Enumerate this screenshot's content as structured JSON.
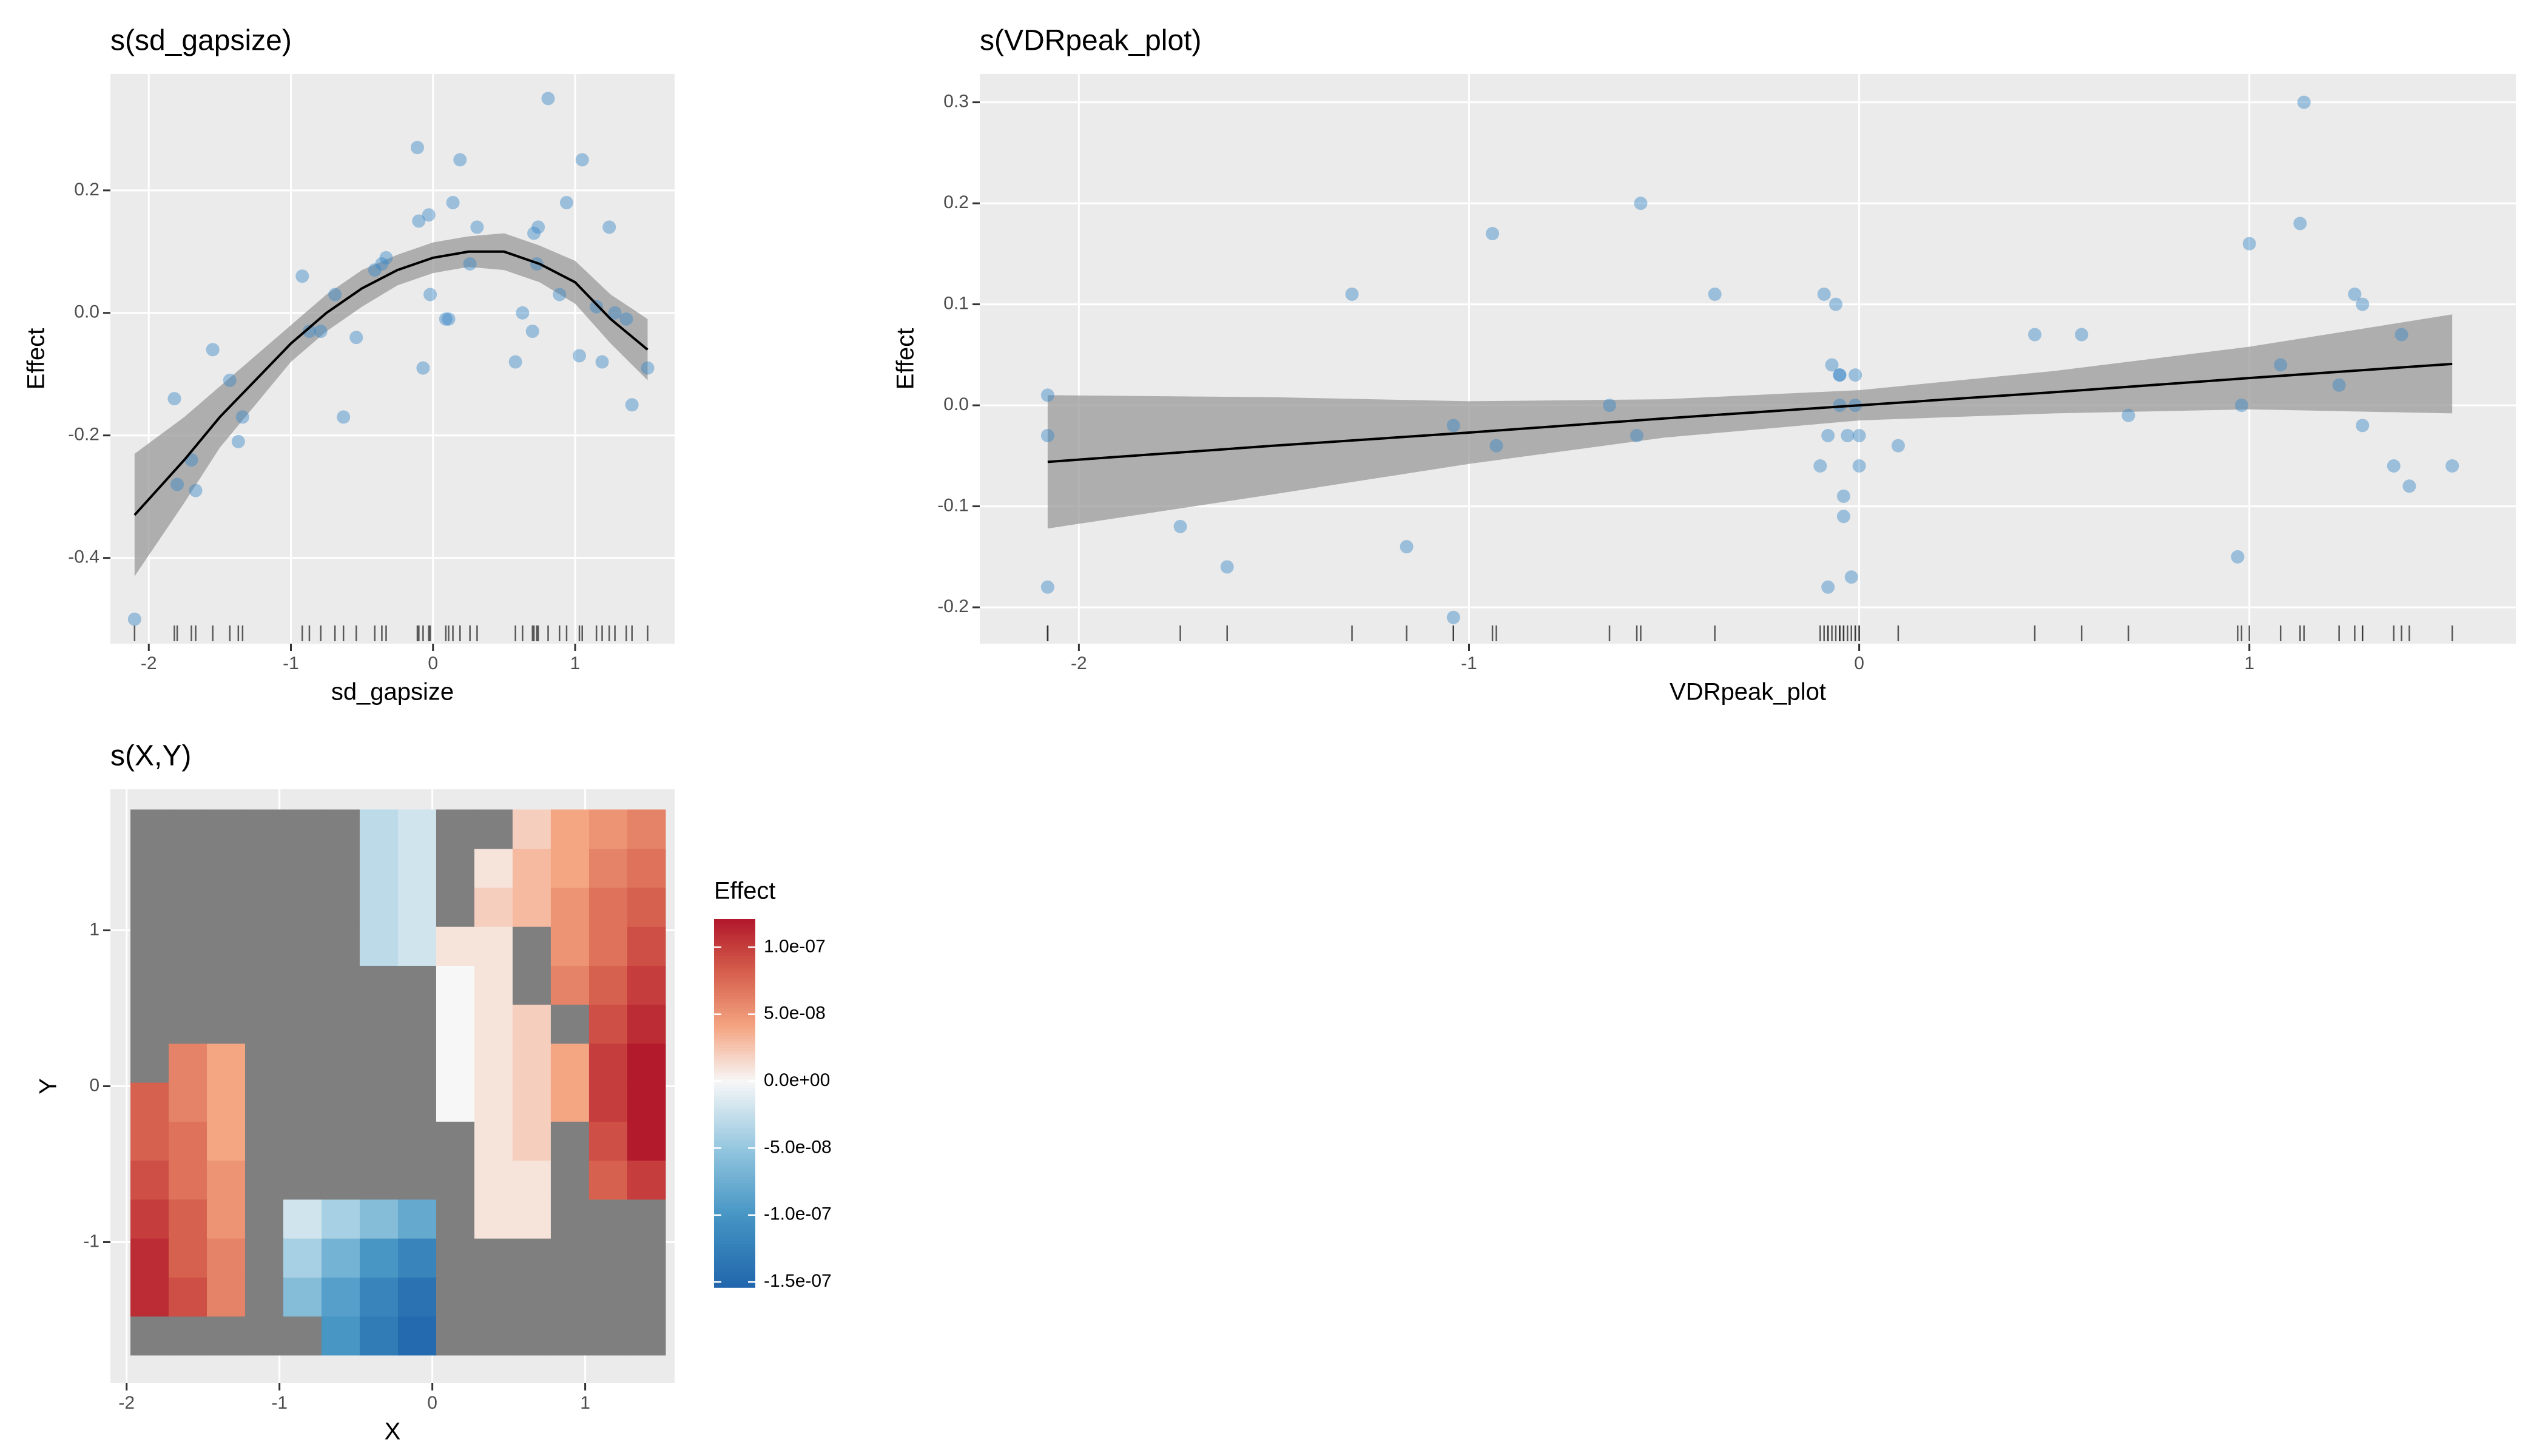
{
  "chart_data": [
    {
      "type": "smooth",
      "title": "s(sd_gapsize)",
      "x_label": "sd_gapsize",
      "y_label": "Effect",
      "points": {
        "x": [
          -2.1,
          -1.82,
          -1.8,
          -1.7,
          -1.67,
          -1.55,
          -1.43,
          -1.37,
          -1.34,
          -0.92,
          -0.87,
          -0.79,
          -0.69,
          -0.63,
          -0.54,
          -0.41,
          -0.36,
          -0.33,
          -0.11,
          -0.1,
          -0.07,
          -0.03,
          -0.02,
          0.09,
          0.11,
          0.14,
          0.19,
          0.26,
          0.31,
          0.58,
          0.63,
          0.7,
          0.71,
          0.73,
          0.74,
          0.81,
          0.89,
          0.94,
          1.03,
          1.05,
          1.15,
          1.19,
          1.24,
          1.28,
          1.36,
          1.4,
          1.51
        ],
        "y": [
          -0.5,
          -0.14,
          -0.28,
          -0.24,
          -0.29,
          -0.06,
          -0.11,
          -0.21,
          -0.17,
          0.06,
          -0.03,
          -0.03,
          0.03,
          -0.17,
          -0.04,
          0.07,
          0.08,
          0.09,
          0.27,
          0.15,
          -0.09,
          0.16,
          0.03,
          -0.01,
          -0.01,
          0.18,
          0.25,
          0.08,
          0.14,
          -0.08,
          0.0,
          -0.03,
          0.13,
          0.08,
          0.14,
          0.35,
          0.03,
          0.18,
          -0.07,
          0.25,
          0.01,
          -0.08,
          0.14,
          0.0,
          -0.01,
          -0.15,
          -0.09
        ]
      },
      "fit": {
        "x": [
          -2.1,
          -1.75,
          -1.5,
          -1.25,
          -1.0,
          -0.75,
          -0.5,
          -0.25,
          0,
          0.25,
          0.5,
          0.75,
          1.0,
          1.25,
          1.51
        ],
        "y": [
          -0.33,
          -0.24,
          -0.17,
          -0.11,
          -0.05,
          0.0,
          0.04,
          0.07,
          0.09,
          0.1,
          0.1,
          0.08,
          0.05,
          -0.01,
          -0.06
        ],
        "upper": [
          -0.23,
          -0.17,
          -0.12,
          -0.07,
          -0.02,
          0.03,
          0.07,
          0.095,
          0.115,
          0.125,
          0.13,
          0.11,
          0.085,
          0.03,
          -0.01
        ],
        "lower": [
          -0.43,
          -0.31,
          -0.22,
          -0.15,
          -0.08,
          -0.03,
          0.01,
          0.045,
          0.065,
          0.075,
          0.07,
          0.05,
          0.015,
          -0.05,
          -0.11
        ]
      },
      "xlim": [
        -2.27,
        1.7
      ],
      "ylim": [
        -0.54,
        0.39
      ],
      "xticks": [
        -2,
        -1,
        0,
        1
      ],
      "yticks": [
        -0.4,
        -0.2,
        {
          "value": 0,
          "label": "0.0"
        },
        0.2
      ],
      "point_color": "#3a87c8",
      "point_alpha": 0.45,
      "line_color": "#000000",
      "ribbon_color": "#9a9a9a",
      "grid": true
    },
    {
      "type": "smooth",
      "title": "s(VDRpeak_plot)",
      "x_label": "VDRpeak_plot",
      "y_label": "Effect",
      "points": {
        "x": [
          -2.08,
          -2.08,
          -2.08,
          -1.74,
          -1.62,
          -1.3,
          -1.16,
          -1.04,
          -1.04,
          -0.94,
          -0.93,
          -0.64,
          -0.57,
          -0.56,
          -0.37,
          -0.1,
          -0.09,
          -0.08,
          -0.08,
          -0.07,
          -0.06,
          -0.05,
          -0.05,
          -0.05,
          -0.04,
          -0.04,
          -0.03,
          -0.02,
          -0.01,
          -0.01,
          0.0,
          0.0,
          0.1,
          0.45,
          0.57,
          0.69,
          0.97,
          0.98,
          1.0,
          1.08,
          1.13,
          1.14,
          1.23,
          1.27,
          1.29,
          1.29,
          1.37,
          1.39,
          1.41,
          1.52
        ],
        "y": [
          0.01,
          -0.03,
          -0.18,
          -0.12,
          -0.16,
          0.11,
          -0.14,
          -0.02,
          -0.21,
          0.17,
          -0.04,
          0.0,
          -0.03,
          0.2,
          0.11,
          -0.06,
          0.11,
          -0.18,
          -0.03,
          0.04,
          0.1,
          0.03,
          0.0,
          0.03,
          -0.09,
          -0.11,
          -0.03,
          -0.17,
          0.03,
          0.0,
          -0.03,
          -0.06,
          -0.04,
          0.07,
          0.07,
          -0.01,
          -0.15,
          0.0,
          0.16,
          0.04,
          0.18,
          0.3,
          0.02,
          0.11,
          0.1,
          -0.02,
          -0.06,
          0.07,
          -0.08,
          -0.06
        ]
      },
      "fit": {
        "x": [
          -2.08,
          -1.5,
          -1,
          -0.5,
          0,
          0.5,
          1,
          1.52
        ],
        "y": [
          -0.056,
          -0.04,
          -0.027,
          -0.013,
          0.0,
          0.013,
          0.027,
          0.041
        ],
        "upper": [
          0.01,
          0.008,
          0.004,
          0.006,
          0.015,
          0.034,
          0.058,
          0.09
        ],
        "lower": [
          -0.122,
          -0.088,
          -0.058,
          -0.032,
          -0.015,
          -0.008,
          -0.004,
          -0.008
        ]
      },
      "xlim": [
        -2.254,
        1.683
      ],
      "ylim": [
        -0.236,
        0.328
      ],
      "xticks": [
        -2,
        -1,
        0,
        1
      ],
      "yticks": [
        -0.2,
        -0.1,
        {
          "value": 0,
          "label": "0.0"
        },
        0.1,
        0.2,
        0.3
      ],
      "point_color": "#3a87c8",
      "point_alpha": 0.45,
      "line_color": "#000000",
      "ribbon_color": "#9a9a9a",
      "grid": true
    },
    {
      "type": "heatmap",
      "title": "s(X,Y)",
      "x_label": "X",
      "y_label": "Y",
      "x": [
        -1.85,
        -1.6,
        -1.35,
        -1.1,
        -0.85,
        -0.6,
        -0.35,
        -0.1,
        0.15,
        0.4,
        0.65,
        0.9,
        1.15,
        1.4
      ],
      "y": [
        -1.6,
        -1.35,
        -1.1,
        -0.85,
        -0.6,
        -0.35,
        -0.1,
        0.15,
        0.4,
        0.65,
        0.9,
        1.15,
        1.4,
        1.65
      ],
      "z": [
        [
          null,
          null,
          null,
          null,
          null,
          -1e-07,
          -1.3e-07,
          -1.5e-07,
          null,
          null,
          null,
          null,
          null,
          null
        ],
        [
          1.1e-07,
          9e-08,
          6e-08,
          null,
          -6e-08,
          -9e-08,
          -1.2e-07,
          -1.4e-07,
          null,
          null,
          null,
          null,
          null,
          null
        ],
        [
          1.1e-07,
          8e-08,
          6e-08,
          null,
          -4e-08,
          -7e-08,
          -1e-07,
          -1.2e-07,
          null,
          null,
          null,
          null,
          null,
          null
        ],
        [
          1e-07,
          8e-08,
          5e-08,
          null,
          -2e-08,
          -4e-08,
          -6e-08,
          -8e-08,
          null,
          1e-08,
          1e-08,
          null,
          null,
          null
        ],
        [
          9e-08,
          7e-08,
          5e-08,
          null,
          null,
          null,
          null,
          null,
          null,
          1e-08,
          1e-08,
          null,
          8e-08,
          1e-07
        ],
        [
          8e-08,
          7e-08,
          4e-08,
          null,
          null,
          null,
          null,
          null,
          null,
          1e-08,
          2e-08,
          null,
          9e-08,
          1.2e-07
        ],
        [
          8e-08,
          6e-08,
          4e-08,
          null,
          null,
          null,
          null,
          null,
          0,
          1e-08,
          2e-08,
          4e-08,
          1e-07,
          1.2e-07
        ],
        [
          null,
          6e-08,
          4e-08,
          null,
          null,
          null,
          null,
          null,
          0,
          1e-08,
          2e-08,
          4e-08,
          1e-07,
          1.2e-07
        ],
        [
          null,
          null,
          null,
          null,
          null,
          null,
          null,
          null,
          0,
          1e-08,
          2e-08,
          null,
          9e-08,
          1.1e-07
        ],
        [
          null,
          null,
          null,
          null,
          null,
          null,
          null,
          null,
          0,
          1e-08,
          null,
          6e-08,
          8e-08,
          1e-07
        ],
        [
          null,
          null,
          null,
          null,
          null,
          null,
          -3e-08,
          -2e-08,
          1e-08,
          1e-08,
          null,
          5e-08,
          7e-08,
          9e-08
        ],
        [
          null,
          null,
          null,
          null,
          null,
          null,
          -3e-08,
          -2e-08,
          null,
          2e-08,
          3e-08,
          5e-08,
          7e-08,
          8e-08
        ],
        [
          null,
          null,
          null,
          null,
          null,
          null,
          -3e-08,
          -2e-08,
          null,
          1e-08,
          3e-08,
          4e-08,
          6e-08,
          7e-08
        ],
        [
          null,
          null,
          null,
          null,
          null,
          null,
          -3e-08,
          -2e-08,
          null,
          null,
          2e-08,
          4e-08,
          5e-08,
          6e-08
        ]
      ],
      "xlim": [
        -2.106,
        1.585
      ],
      "ylim": [
        -1.905,
        1.905
      ],
      "xticks": [
        -2,
        -1,
        0,
        1
      ],
      "yticks": [
        -1,
        0,
        1
      ],
      "legend": {
        "title": "Effect",
        "limits": [
          -1.54e-07,
          1.21e-07
        ],
        "ticks": [
          {
            "value": 1e-07,
            "label": "1.0e-07"
          },
          {
            "value": 5e-08,
            "label": "5.0e-08"
          },
          {
            "value": 0,
            "label": "0.0e+00"
          },
          {
            "value": -5e-08,
            "label": "-5.0e-08"
          },
          {
            "value": -1e-07,
            "label": "-1.0e-07"
          },
          {
            "value": -1.5e-07,
            "label": "-1.5e-07"
          }
        ]
      },
      "colors": [
        "#2166ac",
        "#4393c3",
        "#92c5de",
        "#f7f7f7",
        "#f4a582",
        "#d6604d",
        "#b2182b"
      ],
      "na_color": "#7f7f7f",
      "grid": true
    }
  ]
}
